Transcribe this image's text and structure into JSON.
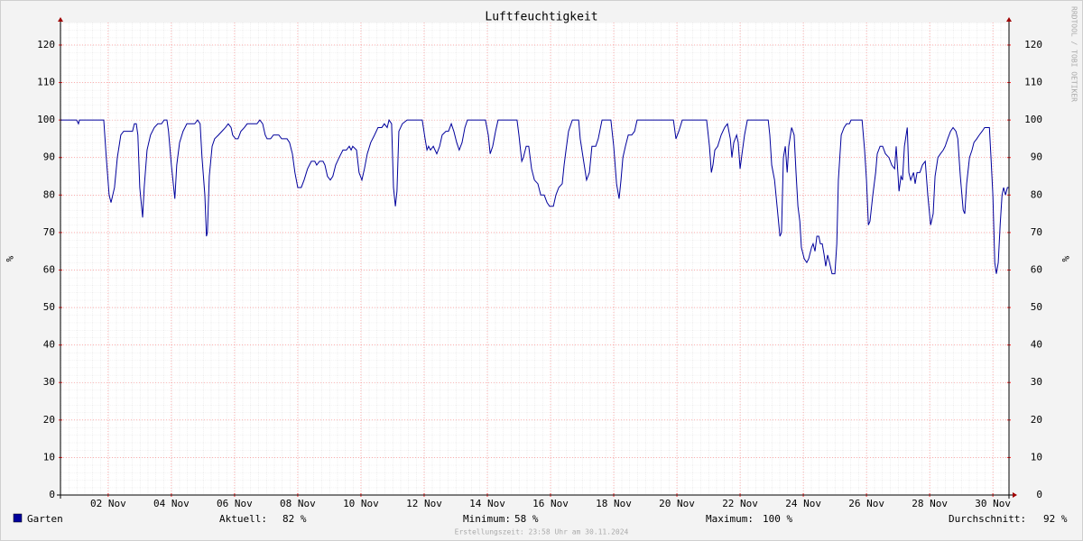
{
  "chart_data": {
    "type": "line",
    "title": "Luftfeuchtigkeit",
    "y_label": "%",
    "watermark": "RRDTOOL / TOBI OETIKER",
    "footer": "Erstellungszeit: 23:58 Uhr am 30.11.2024",
    "xlim": [
      0.49,
      30.51
    ],
    "xticks": [
      {
        "value": 2,
        "label": "02 Nov"
      },
      {
        "value": 4,
        "label": "04 Nov"
      },
      {
        "value": 6,
        "label": "06 Nov"
      },
      {
        "value": 8,
        "label": "08 Nov"
      },
      {
        "value": 10,
        "label": "10 Nov"
      },
      {
        "value": 12,
        "label": "12 Nov"
      },
      {
        "value": 14,
        "label": "14 Nov"
      },
      {
        "value": 16,
        "label": "16 Nov"
      },
      {
        "value": 18,
        "label": "18 Nov"
      },
      {
        "value": 20,
        "label": "20 Nov"
      },
      {
        "value": 22,
        "label": "22 Nov"
      },
      {
        "value": 24,
        "label": "24 Nov"
      },
      {
        "value": 26,
        "label": "26 Nov"
      },
      {
        "value": 28,
        "label": "28 Nov"
      },
      {
        "value": 30,
        "label": "30 Nov"
      }
    ],
    "ylim": [
      0,
      126
    ],
    "yticks": [
      0,
      10,
      20,
      30,
      40,
      50,
      60,
      70,
      80,
      90,
      100,
      110,
      120
    ],
    "grid": true,
    "x": [
      0.49,
      1.0,
      1.06,
      1.09,
      1.86,
      1.94,
      2.03,
      2.09,
      2.2,
      2.29,
      2.4,
      2.49,
      2.77,
      2.83,
      2.89,
      2.94,
      3.0,
      3.09,
      3.14,
      3.23,
      3.34,
      3.46,
      3.57,
      3.69,
      3.77,
      3.86,
      3.91,
      4.0,
      4.11,
      4.17,
      4.26,
      4.37,
      4.49,
      4.74,
      4.83,
      4.91,
      4.97,
      5.06,
      5.11,
      5.14,
      5.2,
      5.29,
      5.37,
      5.49,
      5.6,
      5.71,
      5.8,
      5.89,
      5.94,
      6.03,
      6.11,
      6.2,
      6.31,
      6.4,
      6.71,
      6.8,
      6.89,
      6.97,
      7.03,
      7.14,
      7.23,
      7.4,
      7.49,
      7.66,
      7.74,
      7.83,
      7.91,
      8.0,
      8.11,
      8.2,
      8.31,
      8.43,
      8.54,
      8.6,
      8.69,
      8.8,
      8.86,
      8.94,
      9.03,
      9.11,
      9.2,
      9.31,
      9.43,
      9.54,
      9.63,
      9.69,
      9.74,
      9.86,
      9.94,
      10.03,
      10.11,
      10.2,
      10.31,
      10.43,
      10.54,
      10.66,
      10.74,
      10.83,
      10.89,
      10.97,
      11.03,
      11.09,
      11.14,
      11.2,
      11.31,
      11.46,
      11.94,
      12.03,
      12.09,
      12.14,
      12.2,
      12.29,
      12.4,
      12.49,
      12.57,
      12.69,
      12.77,
      12.86,
      12.94,
      13.03,
      13.11,
      13.2,
      13.29,
      13.37,
      13.94,
      14.03,
      14.09,
      14.17,
      14.26,
      14.34,
      14.94,
      15.0,
      15.09,
      15.14,
      15.23,
      15.31,
      15.4,
      15.49,
      15.6,
      15.69,
      15.8,
      15.89,
      15.97,
      16.09,
      16.17,
      16.26,
      16.37,
      16.43,
      16.49,
      16.57,
      16.69,
      16.89,
      16.94,
      17.03,
      17.14,
      17.23,
      17.31,
      17.43,
      17.51,
      17.63,
      17.91,
      18.0,
      18.09,
      18.17,
      18.23,
      18.29,
      18.37,
      18.46,
      18.57,
      18.66,
      18.74,
      19.89,
      19.97,
      20.06,
      20.17,
      20.94,
      21.03,
      21.09,
      21.14,
      21.2,
      21.29,
      21.4,
      21.51,
      21.6,
      21.69,
      21.74,
      21.8,
      21.89,
      21.94,
      22.0,
      22.06,
      22.14,
      22.23,
      22.89,
      22.94,
      23.0,
      23.09,
      23.17,
      23.26,
      23.31,
      23.37,
      23.43,
      23.49,
      23.54,
      23.63,
      23.71,
      23.77,
      23.83,
      23.89,
      23.94,
      24.03,
      24.11,
      24.17,
      24.26,
      24.31,
      24.37,
      24.43,
      24.49,
      24.54,
      24.6,
      24.66,
      24.71,
      24.77,
      24.83,
      24.91,
      25.0,
      25.06,
      25.11,
      25.2,
      25.29,
      25.37,
      25.46,
      25.51,
      25.6,
      25.86,
      25.94,
      26.0,
      26.06,
      26.11,
      26.2,
      26.29,
      26.34,
      26.43,
      26.51,
      26.6,
      26.71,
      26.8,
      26.89,
      26.94,
      27.03,
      27.09,
      27.14,
      27.2,
      27.29,
      27.34,
      27.4,
      27.49,
      27.54,
      27.6,
      27.69,
      27.77,
      27.86,
      27.94,
      28.03,
      28.11,
      28.17,
      28.26,
      28.34,
      28.43,
      28.49,
      28.57,
      28.66,
      28.74,
      28.83,
      28.89,
      28.97,
      29.06,
      29.11,
      29.17,
      29.26,
      29.34,
      29.4,
      29.49,
      29.57,
      29.66,
      29.74,
      29.89,
      29.94,
      30.0,
      30.06,
      30.11,
      30.17,
      30.23,
      30.29,
      30.34,
      30.4,
      30.46,
      30.51
    ],
    "series": [
      {
        "name": "Garten",
        "color": "#00009c",
        "values": [
          100,
          100,
          99,
          100,
          100,
          90,
          80,
          78,
          82,
          90,
          96,
          97,
          97,
          99,
          99,
          96,
          82,
          74,
          82,
          92,
          96,
          98,
          99,
          99,
          100,
          100,
          97,
          88,
          79,
          88,
          94,
          97,
          99,
          99,
          100,
          99,
          90,
          80,
          69,
          70,
          85,
          93,
          95,
          96,
          97,
          98,
          99,
          98,
          96,
          95,
          95,
          97,
          98,
          99,
          99,
          100,
          99,
          96,
          95,
          95,
          96,
          96,
          95,
          95,
          94,
          91,
          86,
          82,
          82,
          84,
          87,
          89,
          89,
          88,
          89,
          89,
          88,
          85,
          84,
          85,
          88,
          90,
          92,
          92,
          93,
          92,
          93,
          92,
          86,
          84,
          87,
          91,
          94,
          96,
          98,
          98,
          99,
          98,
          100,
          99,
          82,
          77,
          81,
          97,
          99,
          100,
          100,
          95,
          92,
          93,
          92,
          93,
          91,
          93,
          96,
          97,
          97,
          99,
          97,
          94,
          92,
          94,
          98,
          100,
          100,
          96,
          91,
          93,
          97,
          100,
          100,
          96,
          89,
          90,
          93,
          93,
          87,
          84,
          83,
          80,
          80,
          78,
          77,
          77,
          80,
          82,
          83,
          88,
          92,
          97,
          100,
          100,
          95,
          90,
          84,
          86,
          93,
          93,
          95,
          100,
          100,
          93,
          83,
          79,
          84,
          90,
          93,
          96,
          96,
          97,
          100,
          100,
          95,
          97,
          100,
          100,
          93,
          86,
          88,
          92,
          93,
          96,
          98,
          99,
          95,
          90,
          94,
          96,
          94,
          87,
          91,
          96,
          100,
          100,
          96,
          88,
          84,
          77,
          69,
          70,
          90,
          93,
          86,
          93,
          98,
          96,
          86,
          77,
          73,
          66,
          63,
          62,
          63,
          66,
          67,
          65,
          69,
          69,
          67,
          67,
          64,
          61,
          64,
          62,
          59,
          59,
          67,
          84,
          96,
          98,
          99,
          99,
          100,
          100,
          100,
          92,
          84,
          72,
          73,
          80,
          86,
          91,
          93,
          93,
          91,
          90,
          88,
          87,
          93,
          81,
          85,
          84,
          93,
          98,
          86,
          84,
          86,
          83,
          86,
          86,
          88,
          89,
          80,
          72,
          75,
          85,
          90,
          91,
          92,
          93,
          95,
          97,
          98,
          97,
          95,
          85,
          76,
          75,
          83,
          90,
          92,
          94,
          95,
          96,
          97,
          98,
          98,
          90,
          80,
          62,
          59,
          62,
          72,
          80,
          82,
          80,
          82,
          82
        ]
      }
    ],
    "legend_stats": [
      {
        "label": "Aktuell:",
        "value": "82 %"
      },
      {
        "label": "Minimum:",
        "value": "58 %"
      },
      {
        "label": "Maximum:",
        "value": "100 %"
      },
      {
        "label": "Durchschnitt:",
        "value": "92 %"
      }
    ]
  }
}
